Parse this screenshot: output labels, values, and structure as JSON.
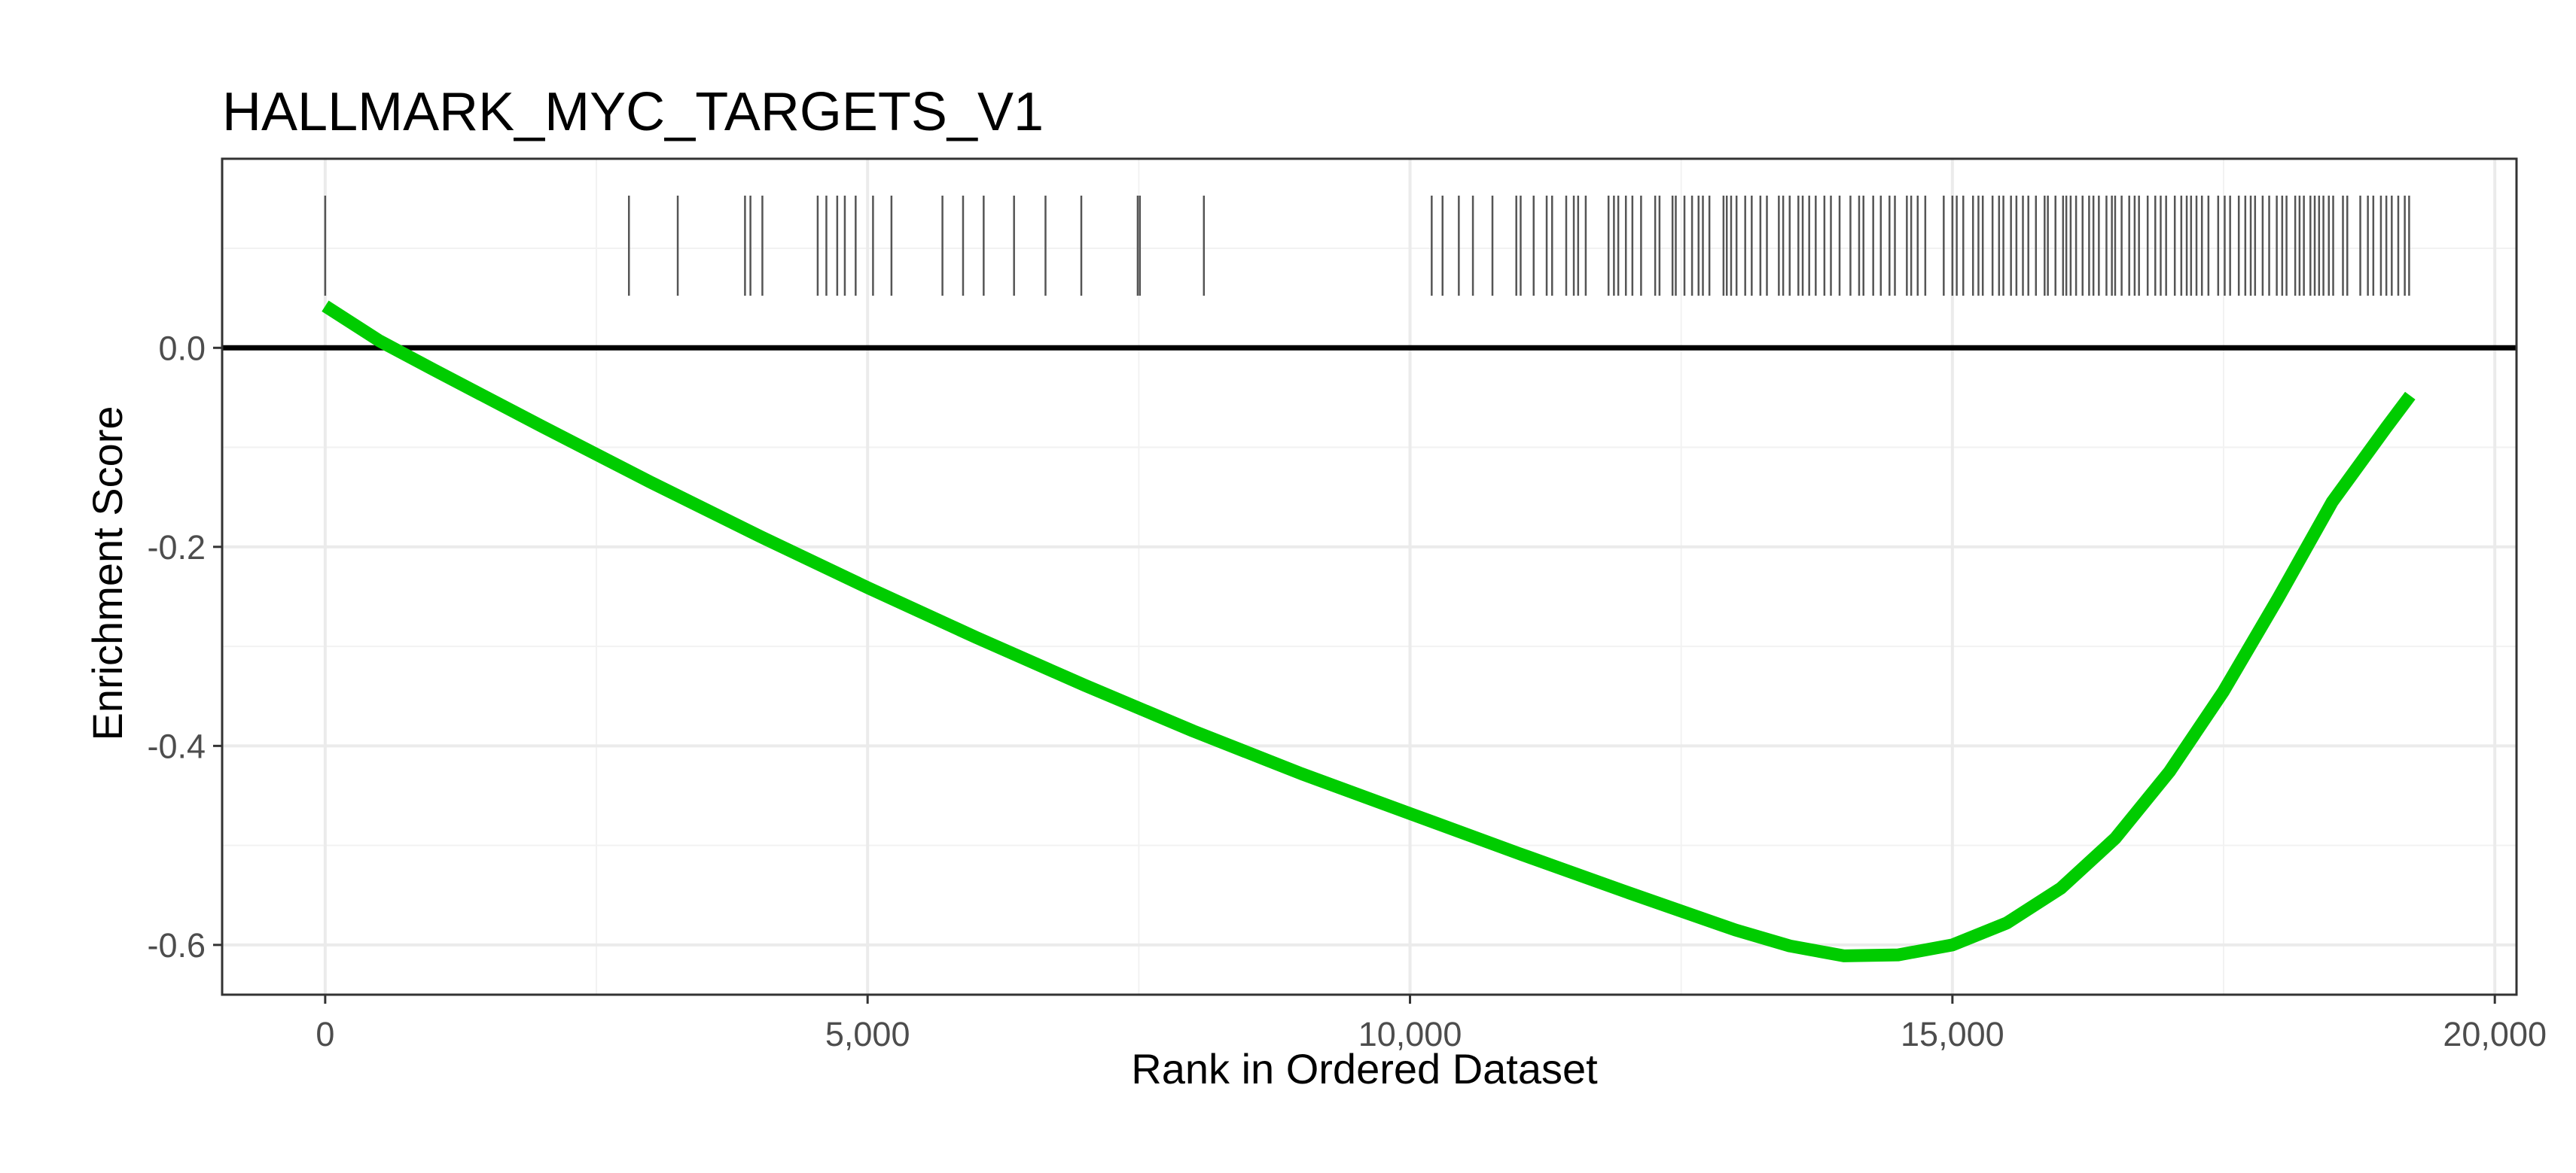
{
  "chart_data": {
    "type": "line",
    "title": "HALLMARK_MYC_TARGETS_V1",
    "xlabel": "Rank in Ordered Dataset",
    "ylabel": "Enrichment Score",
    "xlim": [
      -950,
      20200
    ],
    "ylim": [
      -0.65,
      0.19
    ],
    "x_ticks": [
      0,
      5000,
      10000,
      15000,
      20000
    ],
    "x_tick_labels": [
      "0",
      "5,000",
      "10,000",
      "15,000",
      "20,000"
    ],
    "y_ticks": [
      0.0,
      -0.2,
      -0.4,
      -0.6
    ],
    "y_tick_labels": [
      "0.0",
      "-0.2",
      "-0.4",
      "-0.6"
    ],
    "grid": true,
    "reference_line_y": 0.0,
    "line_color": "#00cc00",
    "hit_color": "#555555",
    "series": [
      {
        "x": [
          0,
          500,
          1000,
          2000,
          3000,
          4000,
          5000,
          6000,
          7000,
          8000,
          9000,
          10000,
          11000,
          12000,
          13000,
          13500,
          14000,
          14500,
          15000,
          15500,
          16000,
          16500,
          17000,
          17500,
          18000,
          18500,
          19000,
          19220
        ],
        "values": [
          0.042,
          0.007,
          -0.022,
          -0.079,
          -0.135,
          -0.189,
          -0.241,
          -0.291,
          -0.339,
          -0.385,
          -0.428,
          -0.468,
          -0.508,
          -0.547,
          -0.585,
          -0.601,
          -0.611,
          -0.61,
          -0.6,
          -0.578,
          -0.543,
          -0.493,
          -0.426,
          -0.345,
          -0.252,
          -0.155,
          -0.08,
          -0.048
        ]
      }
    ],
    "hits": [
      0,
      2800,
      3250,
      3870,
      3920,
      4030,
      4540,
      4620,
      4720,
      4790,
      4890,
      5050,
      5220,
      5690,
      5880,
      6070,
      6350,
      6640,
      6970,
      7490,
      7510,
      8100,
      10200,
      10300,
      10450,
      10580,
      10760,
      10980,
      11020,
      11140,
      11260,
      11310,
      11440,
      11510,
      11550,
      11620,
      11830,
      11880,
      11920,
      11990,
      12050,
      12130,
      12260,
      12300,
      12420,
      12450,
      12530,
      12600,
      12660,
      12700,
      12760,
      12890,
      12920,
      12960,
      13010,
      13090,
      13150,
      13230,
      13290,
      13400,
      13440,
      13500,
      13580,
      13620,
      13680,
      13740,
      13820,
      13880,
      13960,
      14060,
      14140,
      14180,
      14270,
      14340,
      14420,
      14470,
      14580,
      14620,
      14680,
      14750,
      14920,
      15000,
      15040,
      15100,
      15190,
      15240,
      15280,
      15370,
      15430,
      15470,
      15540,
      15590,
      15650,
      15700,
      15770,
      15850,
      15880,
      15950,
      16020,
      16050,
      16090,
      16140,
      16200,
      16260,
      16300,
      16350,
      16420,
      16470,
      16500,
      16560,
      16630,
      16680,
      16720,
      16800,
      16870,
      16920,
      16970,
      17050,
      17110,
      17160,
      17200,
      17250,
      17300,
      17360,
      17450,
      17510,
      17560,
      17640,
      17700,
      17750,
      17790,
      17860,
      17920,
      17990,
      18040,
      18080,
      18160,
      18200,
      18240,
      18300,
      18340,
      18380,
      18420,
      18470,
      18510,
      18600,
      18640,
      18760,
      18830,
      18880,
      18950,
      19000,
      19050,
      19110,
      19170,
      19210
    ]
  }
}
